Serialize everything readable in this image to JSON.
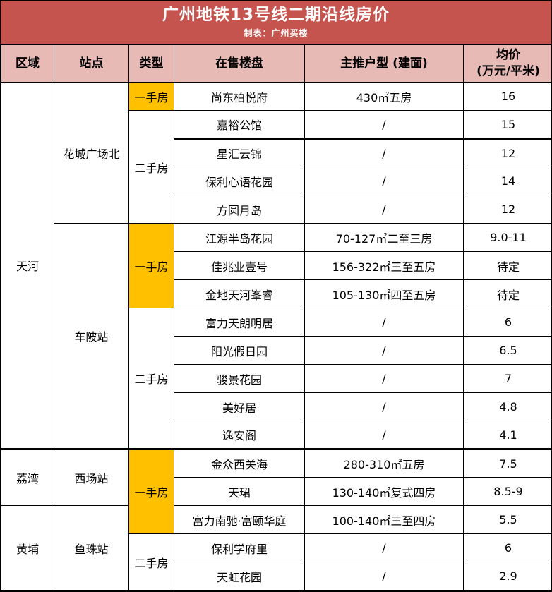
{
  "title": "广州地铁13号线二期沿线房价",
  "subtitle": "制表：广州买楼",
  "colors": {
    "banner_bg": "#C5534E",
    "banner_text": "#FFFFFF",
    "header_bg": "#E8BAB6",
    "highlight_new_home": "#FFC000",
    "border": "#000000",
    "body_bg": "#FFFFFF"
  },
  "table": {
    "headers": [
      "区域",
      "站点",
      "类型",
      "在售楼盘",
      "主推户型 (建面)",
      "均价\n(万元/平米)"
    ],
    "rows": [
      {
        "cells": [
          {
            "t": "天河",
            "rs": 13,
            "cls": "region"
          },
          {
            "t": "花城广场北",
            "rs": 5,
            "cls": "station"
          },
          {
            "t": "一手房",
            "cls": "type new"
          },
          {
            "t": "尚东柏悦府",
            "cls": "name"
          },
          {
            "t": "430㎡五房",
            "cls": "unit"
          },
          {
            "t": "16",
            "cls": "price"
          }
        ]
      },
      {
        "cells": [
          {
            "t": "二手房",
            "rs": 4,
            "cls": "type"
          },
          {
            "t": "嘉裕公馆",
            "cls": "name"
          },
          {
            "t": "/",
            "cls": "unit"
          },
          {
            "t": "15",
            "cls": "price"
          }
        ]
      },
      {
        "cells": [
          {
            "t": "星汇云锦",
            "cls": "name thick"
          },
          {
            "t": "/",
            "cls": "unit thick"
          },
          {
            "t": "12",
            "cls": "price thick"
          }
        ]
      },
      {
        "cells": [
          {
            "t": "保利心语花园",
            "cls": "name"
          },
          {
            "t": "/",
            "cls": "unit"
          },
          {
            "t": "14",
            "cls": "price"
          }
        ]
      },
      {
        "cells": [
          {
            "t": "方圆月岛",
            "cls": "name"
          },
          {
            "t": "/",
            "cls": "unit"
          },
          {
            "t": "12",
            "cls": "price"
          }
        ]
      },
      {
        "cells": [
          {
            "t": "车陂站",
            "rs": 8,
            "cls": "station"
          },
          {
            "t": "一手房",
            "rs": 3,
            "cls": "type new"
          },
          {
            "t": "江源半岛花园",
            "cls": "name"
          },
          {
            "t": "70-127㎡二至三房",
            "cls": "unit"
          },
          {
            "t": "9.0-11",
            "cls": "price"
          }
        ]
      },
      {
        "cells": [
          {
            "t": "佳兆业壹号",
            "cls": "name"
          },
          {
            "t": "156-322㎡三至五房",
            "cls": "unit"
          },
          {
            "t": "待定",
            "cls": "price"
          }
        ]
      },
      {
        "cells": [
          {
            "t": "金地天河峯睿",
            "cls": "name"
          },
          {
            "t": "105-130㎡四至五房",
            "cls": "unit"
          },
          {
            "t": "待定",
            "cls": "price"
          }
        ]
      },
      {
        "cells": [
          {
            "t": "二手房",
            "rs": 5,
            "cls": "type"
          },
          {
            "t": "富力天朗明居",
            "cls": "name"
          },
          {
            "t": "/",
            "cls": "unit"
          },
          {
            "t": "6",
            "cls": "price"
          }
        ]
      },
      {
        "cells": [
          {
            "t": "阳光假日园",
            "cls": "name"
          },
          {
            "t": "/",
            "cls": "unit"
          },
          {
            "t": "6.5",
            "cls": "price"
          }
        ]
      },
      {
        "cells": [
          {
            "t": "骏景花园",
            "cls": "name"
          },
          {
            "t": "/",
            "cls": "unit"
          },
          {
            "t": "7",
            "cls": "price"
          }
        ]
      },
      {
        "cells": [
          {
            "t": "美好居",
            "cls": "name"
          },
          {
            "t": "/",
            "cls": "unit"
          },
          {
            "t": "4.8",
            "cls": "price"
          }
        ]
      },
      {
        "cells": [
          {
            "t": "逸安阁",
            "cls": "name"
          },
          {
            "t": "/",
            "cls": "unit"
          },
          {
            "t": "4.1",
            "cls": "price"
          }
        ]
      },
      {
        "cells": [
          {
            "t": "荔湾",
            "rs": 2,
            "cls": "region sec"
          },
          {
            "t": "西场站",
            "rs": 2,
            "cls": "station sec"
          },
          {
            "t": "一手房",
            "rs": 3,
            "cls": "type new sec"
          },
          {
            "t": "金众西关海",
            "cls": "name sec"
          },
          {
            "t": "280-310㎡五房",
            "cls": "unit sec"
          },
          {
            "t": "7.5",
            "cls": "price sec"
          }
        ]
      },
      {
        "cells": [
          {
            "t": "天珺",
            "cls": "name"
          },
          {
            "t": "130-140㎡复式四房",
            "cls": "unit"
          },
          {
            "t": "8.5-9",
            "cls": "price"
          }
        ]
      },
      {
        "cells": [
          {
            "t": "黄埔",
            "rs": 3,
            "cls": "region"
          },
          {
            "t": "鱼珠站",
            "rs": 3,
            "cls": "station"
          },
          {
            "t": "富力南驰·富颐华庭",
            "cls": "name"
          },
          {
            "t": "100-140㎡三至四房",
            "cls": "unit"
          },
          {
            "t": "5.5",
            "cls": "price"
          }
        ]
      },
      {
        "cells": [
          {
            "t": "二手房",
            "rs": 2,
            "cls": "type"
          },
          {
            "t": "保利学府里",
            "cls": "name"
          },
          {
            "t": "/",
            "cls": "unit"
          },
          {
            "t": "6",
            "cls": "price"
          }
        ]
      },
      {
        "cells": [
          {
            "t": "天虹花园",
            "cls": "name"
          },
          {
            "t": "/",
            "cls": "unit"
          },
          {
            "t": "2.9",
            "cls": "price"
          }
        ]
      }
    ]
  },
  "chart_data": {
    "type": "table",
    "title": "广州地铁13号线二期沿线房价",
    "subtitle": "制表：广州买楼",
    "columns": [
      "区域",
      "站点",
      "类型",
      "在售楼盘",
      "主推户型 (建面)",
      "均价(万元/平米)"
    ],
    "rows": [
      [
        "天河",
        "花城广场北",
        "一手房",
        "尚东柏悦府",
        "430㎡五房",
        "16"
      ],
      [
        "天河",
        "花城广场北",
        "二手房",
        "嘉裕公馆",
        "/",
        "15"
      ],
      [
        "天河",
        "花城广场北",
        "二手房",
        "星汇云锦",
        "/",
        "12"
      ],
      [
        "天河",
        "花城广场北",
        "二手房",
        "保利心语花园",
        "/",
        "14"
      ],
      [
        "天河",
        "花城广场北",
        "二手房",
        "方圆月岛",
        "/",
        "12"
      ],
      [
        "天河",
        "车陂站",
        "一手房",
        "江源半岛花园",
        "70-127㎡二至三房",
        "9.0-11"
      ],
      [
        "天河",
        "车陂站",
        "一手房",
        "佳兆业壹号",
        "156-322㎡三至五房",
        "待定"
      ],
      [
        "天河",
        "车陂站",
        "一手房",
        "金地天河峯睿",
        "105-130㎡四至五房",
        "待定"
      ],
      [
        "天河",
        "车陂站",
        "二手房",
        "富力天朗明居",
        "/",
        "6"
      ],
      [
        "天河",
        "车陂站",
        "二手房",
        "阳光假日园",
        "/",
        "6.5"
      ],
      [
        "天河",
        "车陂站",
        "二手房",
        "骏景花园",
        "/",
        "7"
      ],
      [
        "天河",
        "车陂站",
        "二手房",
        "美好居",
        "/",
        "4.8"
      ],
      [
        "天河",
        "车陂站",
        "二手房",
        "逸安阁",
        "/",
        "4.1"
      ],
      [
        "荔湾",
        "西场站",
        "一手房",
        "金众西关海",
        "280-310㎡五房",
        "7.5"
      ],
      [
        "荔湾",
        "西场站",
        "一手房",
        "天珺",
        "130-140㎡复式四房",
        "8.5-9"
      ],
      [
        "黄埔",
        "鱼珠站",
        "一手房",
        "富力南驰·富颐华庭",
        "100-140㎡三至四房",
        "5.5"
      ],
      [
        "黄埔",
        "鱼珠站",
        "二手房",
        "保利学府里",
        "/",
        "6"
      ],
      [
        "黄埔",
        "鱼珠站",
        "二手房",
        "天虹花园",
        "/",
        "2.9"
      ]
    ]
  }
}
